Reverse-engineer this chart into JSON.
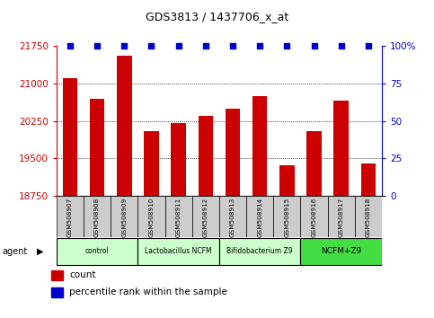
{
  "title": "GDS3813 / 1437706_x_at",
  "categories": [
    "GSM508907",
    "GSM508908",
    "GSM508909",
    "GSM508910",
    "GSM508911",
    "GSM508912",
    "GSM508913",
    "GSM508914",
    "GSM508915",
    "GSM508916",
    "GSM508917",
    "GSM508918"
  ],
  "values": [
    21100,
    20700,
    21550,
    20050,
    20200,
    20350,
    20500,
    20750,
    19350,
    20050,
    20650,
    19400
  ],
  "percentile_values": [
    100,
    100,
    100,
    100,
    100,
    100,
    100,
    100,
    100,
    100,
    100,
    100
  ],
  "bar_color": "#cc0000",
  "dot_color": "#0000cc",
  "ylim_left": [
    18750,
    21750
  ],
  "ylim_right": [
    0,
    100
  ],
  "yticks_left": [
    18750,
    19500,
    20250,
    21000,
    21750
  ],
  "yticks_right": [
    0,
    25,
    50,
    75,
    100
  ],
  "agent_groups": [
    {
      "label": "control",
      "start": 0,
      "end": 3,
      "color": "#ccffcc"
    },
    {
      "label": "Lactobacillus NCFM",
      "start": 3,
      "end": 6,
      "color": "#ccffcc"
    },
    {
      "label": "Bifidobacterium Z9",
      "start": 6,
      "end": 9,
      "color": "#ccffcc"
    },
    {
      "label": "NCFM+Z9",
      "start": 9,
      "end": 12,
      "color": "#44dd44"
    }
  ],
  "legend_count_color": "#cc0000",
  "legend_pct_color": "#0000cc",
  "tick_area_color": "#cccccc"
}
